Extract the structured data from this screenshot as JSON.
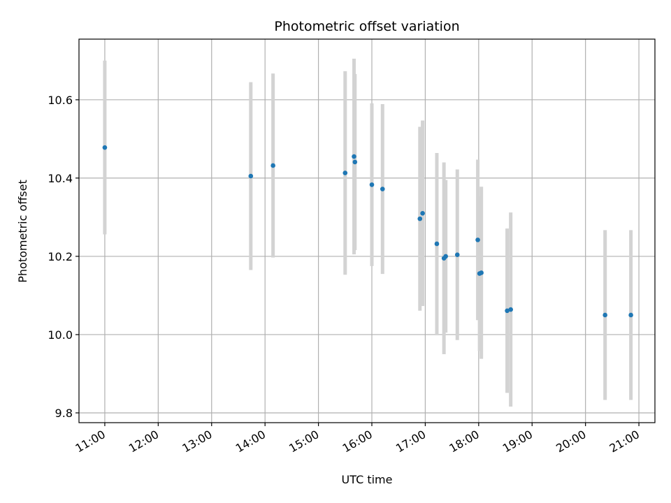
{
  "chart_data": {
    "type": "scatter",
    "title": "Photometric offset variation",
    "xlabel": "UTC time",
    "ylabel": "Photometric offset",
    "x_ticks": [
      "11:00",
      "12:00",
      "13:00",
      "14:00",
      "15:00",
      "16:00",
      "17:00",
      "18:00",
      "19:00",
      "20:00",
      "21:00"
    ],
    "xlim": [
      "10:31",
      "21:18"
    ],
    "ylim": [
      9.775,
      10.755
    ],
    "y_ticks": [
      9.8,
      10.0,
      10.2,
      10.4,
      10.6
    ],
    "grid": true,
    "marker_color": "#1f77b4",
    "errorbar_color": "#d3d3d3",
    "points": [
      {
        "x": "11:00",
        "y": 10.478,
        "err": 0.222
      },
      {
        "x": "13:44",
        "y": 10.405,
        "err": 0.24
      },
      {
        "x": "14:09",
        "y": 10.432,
        "err": 0.235
      },
      {
        "x": "15:30",
        "y": 10.413,
        "err": 0.26
      },
      {
        "x": "15:40",
        "y": 10.455,
        "err": 0.25
      },
      {
        "x": "15:41",
        "y": 10.441,
        "err": 0.225
      },
      {
        "x": "16:00",
        "y": 10.383,
        "err": 0.208
      },
      {
        "x": "16:12",
        "y": 10.372,
        "err": 0.217
      },
      {
        "x": "16:54",
        "y": 10.296,
        "err": 0.235
      },
      {
        "x": "16:57",
        "y": 10.31,
        "err": 0.237
      },
      {
        "x": "17:13",
        "y": 10.232,
        "err": 0.232
      },
      {
        "x": "17:21",
        "y": 10.195,
        "err": 0.245
      },
      {
        "x": "17:23",
        "y": 10.2,
        "err": 0.195
      },
      {
        "x": "17:36",
        "y": 10.204,
        "err": 0.218
      },
      {
        "x": "17:59",
        "y": 10.242,
        "err": 0.205
      },
      {
        "x": "18:01",
        "y": 10.156,
        "err": 0.198
      },
      {
        "x": "18:03",
        "y": 10.158,
        "err": 0.22
      },
      {
        "x": "18:32",
        "y": 10.061,
        "err": 0.21
      },
      {
        "x": "18:36",
        "y": 10.064,
        "err": 0.248
      },
      {
        "x": "20:22",
        "y": 10.05,
        "err": 0.217
      },
      {
        "x": "20:51",
        "y": 10.05,
        "err": 0.217
      }
    ]
  }
}
